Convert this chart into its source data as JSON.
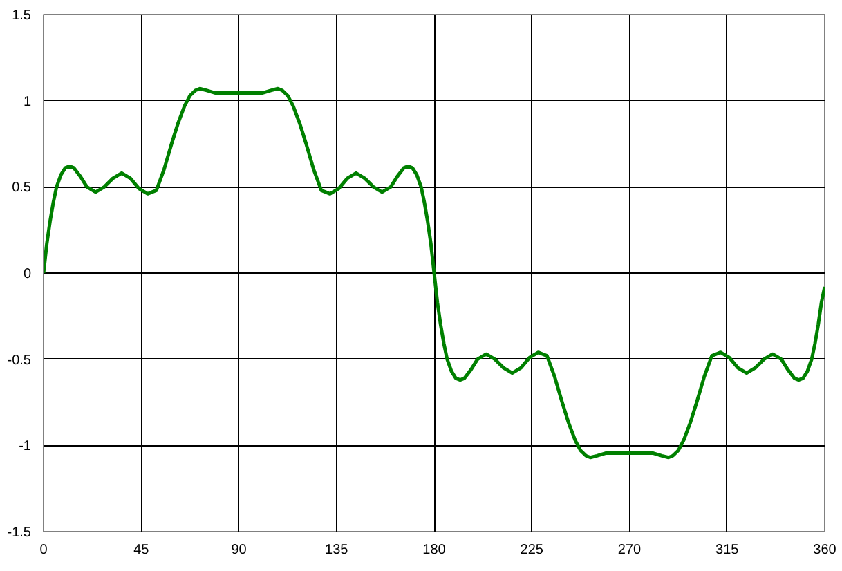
{
  "chart_data": {
    "type": "line",
    "series": [
      {
        "color": "#008000",
        "x": [
          0,
          1.5,
          3,
          4.5,
          6,
          8,
          10,
          12,
          14,
          17,
          20,
          24,
          28,
          32,
          36,
          40,
          44,
          48,
          52,
          55.5,
          59,
          62,
          65,
          67.5,
          70,
          72,
          75,
          79,
          84,
          90,
          96,
          101,
          105,
          108,
          110,
          112.5,
          115,
          118,
          121,
          124.5,
          128,
          132,
          136,
          140,
          144,
          148,
          152,
          156,
          160,
          163,
          166,
          168,
          170,
          172,
          174,
          175.5,
          177,
          178.5,
          180,
          181.5,
          183,
          184.5,
          186,
          188,
          190,
          192,
          194,
          197,
          200,
          204,
          208,
          212,
          216,
          220,
          224,
          228,
          232,
          235.5,
          239,
          242,
          245,
          247.5,
          250,
          252,
          255,
          259,
          264,
          270,
          276,
          281,
          285,
          288,
          290,
          292.5,
          295,
          298,
          301,
          304.5,
          308,
          312,
          316,
          320,
          324,
          328,
          332,
          336,
          340,
          343,
          346,
          348,
          350,
          352,
          354,
          355.5,
          357,
          358.5,
          360
        ],
        "values": [
          0,
          0.17,
          0.3,
          0.41,
          0.5,
          0.57,
          0.61,
          0.62,
          0.61,
          0.56,
          0.5,
          0.47,
          0.5,
          0.55,
          0.58,
          0.55,
          0.49,
          0.46,
          0.48,
          0.6,
          0.75,
          0.87,
          0.97,
          1.03,
          1.06,
          1.07,
          1.06,
          1.045,
          1.045,
          1.045,
          1.045,
          1.045,
          1.06,
          1.07,
          1.06,
          1.03,
          0.97,
          0.87,
          0.75,
          0.6,
          0.48,
          0.46,
          0.49,
          0.55,
          0.58,
          0.55,
          0.5,
          0.47,
          0.5,
          0.56,
          0.61,
          0.62,
          0.61,
          0.57,
          0.5,
          0.41,
          0.3,
          0.17,
          0,
          -0.17,
          -0.3,
          -0.41,
          -0.5,
          -0.57,
          -0.61,
          -0.62,
          -0.61,
          -0.56,
          -0.5,
          -0.47,
          -0.5,
          -0.55,
          -0.58,
          -0.55,
          -0.49,
          -0.46,
          -0.48,
          -0.6,
          -0.75,
          -0.87,
          -0.97,
          -1.03,
          -1.06,
          -1.07,
          -1.06,
          -1.045,
          -1.045,
          -1.045,
          -1.045,
          -1.045,
          -1.06,
          -1.07,
          -1.06,
          -1.03,
          -0.97,
          -0.87,
          -0.75,
          -0.6,
          -0.48,
          -0.46,
          -0.49,
          -0.55,
          -0.58,
          -0.55,
          -0.5,
          -0.47,
          -0.5,
          -0.56,
          -0.61,
          -0.62,
          -0.61,
          -0.57,
          -0.5,
          -0.41,
          -0.3,
          -0.17,
          -0.08
        ]
      }
    ],
    "xlim": [
      0,
      360
    ],
    "xticks": [
      0,
      45,
      90,
      135,
      180,
      225,
      270,
      315,
      360
    ],
    "ylim": [
      -1.5,
      1.5
    ],
    "yticks": [
      -1.5,
      -1,
      -0.5,
      0,
      0.5,
      1,
      1.5
    ],
    "grid": true,
    "line_style": "solid"
  }
}
